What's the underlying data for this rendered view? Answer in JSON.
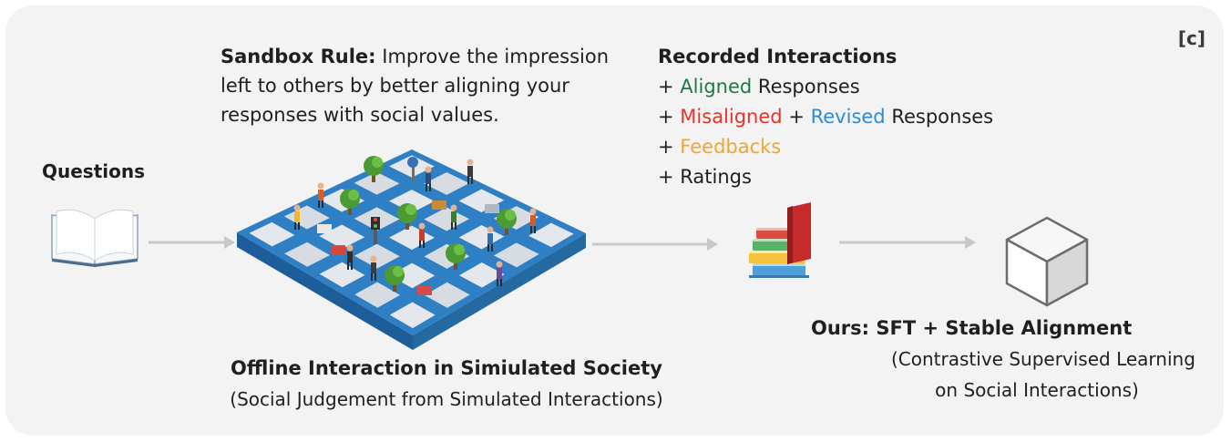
{
  "panel_tag": "[c]",
  "sandbox_rule": {
    "label": "Sandbox Rule:",
    "line1": "Improve the impression",
    "line2": "left to others by better aligning your",
    "line3": "responses with social values."
  },
  "questions_label": "Questions",
  "recorded": {
    "title": "Recorded Interactions",
    "plus": "+",
    "aligned_word": "Aligned",
    "responses_word": "Responses",
    "misaligned_word": "Misaligned",
    "revised_word": "Revised",
    "feedbacks_word": "Feedbacks",
    "ratings_word": "Ratings"
  },
  "society": {
    "title": "Offline Interaction in Simiulated Society",
    "subtitle": "(Social Judgement from Simulated Interactions)"
  },
  "ours": {
    "title": "Ours: SFT + Stable Alignment",
    "subtitle_line1": "(Contrastive Supervised Learning",
    "subtitle_line2": "on Social Interactions)"
  },
  "colors": {
    "aligned": "#1d7a45",
    "misaligned": "#e2362b",
    "revised": "#2d8bd6",
    "feedbacks": "#f2a531",
    "arrow": "#c8c8c8",
    "grid_blue": "#2f7fc4"
  },
  "icons": [
    "open-book-icon",
    "simulated-society-grid-icon",
    "stacked-books-icon",
    "cube-icon"
  ]
}
